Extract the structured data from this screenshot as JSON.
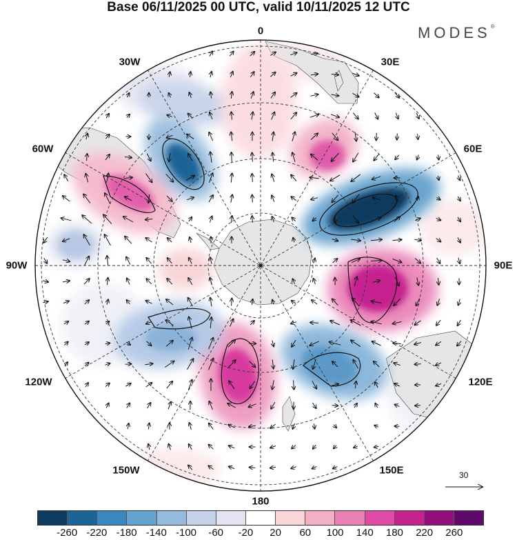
{
  "title": "Base 06/11/2025 00 UTC, valid 10/11/2025 12 UTC",
  "brand": {
    "name": "MODES",
    "mark": "®"
  },
  "longitude_labels": [
    "0",
    "30E",
    "60E",
    "90E",
    "120E",
    "150E",
    "180",
    "150W",
    "120W",
    "90W",
    "60W",
    "30W"
  ],
  "reference_vector": {
    "label": "30"
  },
  "legend": {
    "colors": [
      "#0d3b5e",
      "#1b6496",
      "#3a88bf",
      "#62a3cf",
      "#94bbdd",
      "#c4d2ea",
      "#e4e3f2",
      "#ffffff",
      "#f8d6d8",
      "#f2b0c4",
      "#ea7fb5",
      "#e04ca5",
      "#c5228f",
      "#930f7e",
      "#5e0a6a"
    ],
    "labels": [
      "-260",
      "-220",
      "-180",
      "-140",
      "-100",
      "-60",
      "-20",
      "20",
      "60",
      "100",
      "140",
      "180",
      "220",
      "260"
    ]
  },
  "map": {
    "land_color": "#e6e6e6",
    "grid_color": "#333333"
  }
}
